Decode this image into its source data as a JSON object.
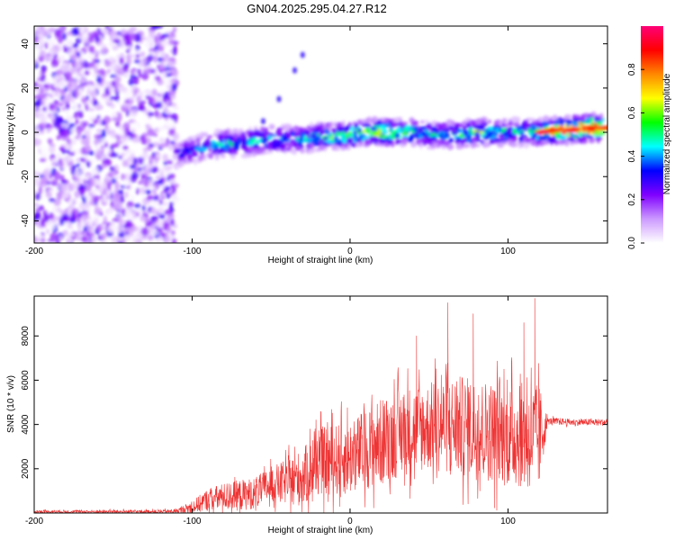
{
  "title": "GN04.2025.295.04.27.R12",
  "chart_data": [
    {
      "type": "heatmap",
      "xlabel": "Height of straight line (km)",
      "ylabel": "Frequency (Hz)",
      "xlim": [
        -200,
        163
      ],
      "ylim": [
        -50,
        48
      ],
      "x_ticks": [
        -200,
        -100,
        0,
        100
      ],
      "y_ticks": [
        -40,
        -20,
        0,
        20,
        40
      ],
      "colorbar": {
        "label": "Normalized spectral amplitude",
        "range": [
          0,
          1
        ],
        "ticks": [
          "0.0",
          "0.2",
          "0.4",
          "0.6",
          "0.8"
        ],
        "colors": [
          "#ffffff",
          "#cc99ff",
          "#7f00ff",
          "#0000ff",
          "#00ffff",
          "#00ff00",
          "#ffff00",
          "#ff8800",
          "#ff0000",
          "#ff0077"
        ]
      },
      "noise_region_x": [
        -200,
        -110
      ],
      "ridge": {
        "x": [
          -110,
          -100,
          -90,
          -80,
          -70,
          -60,
          -50,
          -40,
          -30,
          -20,
          -10,
          0,
          10,
          20,
          30,
          40,
          50,
          60,
          70,
          80,
          90,
          100,
          110,
          120,
          130,
          140,
          150,
          160
        ],
        "frequency": [
          -10,
          -8,
          -6,
          -5,
          -5,
          -4,
          -3,
          -3,
          -3,
          -2,
          -2,
          -1,
          0,
          0,
          0,
          0,
          -1,
          -1,
          -1,
          0,
          0,
          0,
          0,
          0,
          1,
          1,
          2,
          2
        ],
        "amplitude": [
          0.35,
          0.4,
          0.45,
          0.5,
          0.45,
          0.5,
          0.5,
          0.45,
          0.5,
          0.55,
          0.6,
          0.7,
          0.65,
          0.7,
          0.6,
          0.55,
          0.5,
          0.5,
          0.55,
          0.6,
          0.55,
          0.5,
          0.5,
          0.6,
          0.9,
          0.95,
          1.0,
          0.9
        ]
      },
      "streak": {
        "x": [
          -55,
          -45,
          -35,
          -30
        ],
        "frequency": [
          5,
          15,
          28,
          35
        ]
      }
    },
    {
      "type": "line",
      "xlabel": "Height of straight line (km)",
      "ylabel": "SNR (10 * v/v)",
      "xlim": [
        -200,
        163
      ],
      "ylim": [
        0,
        9800
      ],
      "x_ticks": [
        -200,
        -100,
        0,
        100
      ],
      "y_ticks": [
        2000,
        4000,
        6000,
        8000
      ],
      "series": [
        {
          "name": "SNR",
          "color": "#ee3333",
          "x": [
            -200,
            -190,
            -180,
            -170,
            -160,
            -150,
            -140,
            -130,
            -120,
            -110,
            -100,
            -90,
            -80,
            -70,
            -60,
            -50,
            -40,
            -30,
            -20,
            -10,
            0,
            10,
            20,
            30,
            40,
            50,
            60,
            70,
            80,
            90,
            100,
            110,
            120,
            125,
            130,
            140,
            150,
            163
          ],
          "base": [
            60,
            60,
            60,
            60,
            60,
            60,
            60,
            60,
            60,
            80,
            250,
            600,
            750,
            800,
            900,
            1300,
            1400,
            1600,
            2300,
            2400,
            2500,
            2900,
            3200,
            3600,
            3800,
            3900,
            4000,
            3900,
            3800,
            3700,
            3500,
            3500,
            3400,
            4150,
            4150,
            4100,
            4100,
            4100
          ],
          "spread": [
            80,
            80,
            80,
            80,
            80,
            80,
            80,
            80,
            80,
            100,
            300,
            500,
            600,
            700,
            700,
            800,
            1000,
            1300,
            1500,
            1600,
            1700,
            1800,
            2000,
            2000,
            2000,
            2000,
            2200,
            2300,
            2300,
            2300,
            2300,
            2400,
            2400,
            150,
            150,
            150,
            150,
            150
          ],
          "peaks": [
            {
              "x": 62,
              "y": 9500
            },
            {
              "x": 78,
              "y": 9000
            },
            {
              "x": 110,
              "y": 8600
            },
            {
              "x": 117,
              "y": 9700
            },
            {
              "x": 42,
              "y": 8000
            }
          ]
        }
      ]
    }
  ]
}
